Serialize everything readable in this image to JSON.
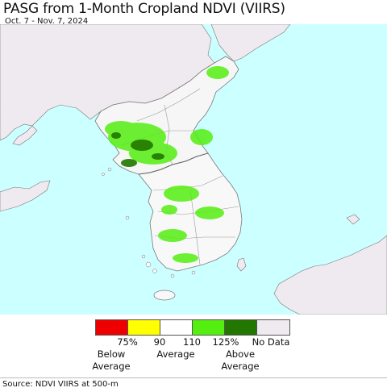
{
  "title": "PASG from 1-Month Cropland NDVI (VIIRS)",
  "subtitle": "Oct. 7 - Nov. 7, 2024",
  "legend": {
    "swatches": [
      {
        "name": "below-75",
        "color": "#ee0000"
      },
      {
        "name": "75-90",
        "color": "#ffff00"
      },
      {
        "name": "90-110",
        "color": "#ffffff"
      },
      {
        "name": "110-125",
        "color": "#55ee11"
      },
      {
        "name": "above-125",
        "color": "#227700"
      },
      {
        "name": "no-data",
        "color": "#efeaef"
      }
    ],
    "ticks": [
      "75%",
      "90",
      "110",
      "125%"
    ],
    "no_data_label": "No Data",
    "below_label": "Below\nAverage",
    "average_label": "Average",
    "above_label": "Above\nAverage"
  },
  "colors": {
    "water": "#ccffff",
    "land_no_data": "#efeaef",
    "cropland_normal": "#ffffff",
    "above_average": "#55ee11",
    "well_above_average": "#227700",
    "borders": "#777777"
  },
  "source": "Source: NDVI VIIRS at 500-m"
}
